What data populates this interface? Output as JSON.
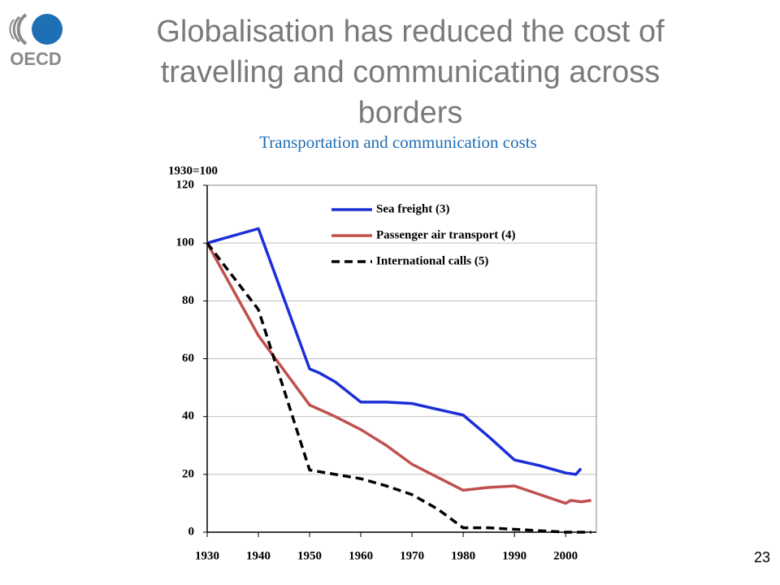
{
  "logo_text": "OECD",
  "page_number": "23",
  "chart_data": {
    "type": "line",
    "title": "Globalisation has reduced the cost of travelling and communicating across borders",
    "subtitle": "Transportation and communication costs",
    "y_label": "1930=100",
    "xlim": [
      1930,
      2006
    ],
    "xticks": [
      1930,
      1940,
      1950,
      1960,
      1970,
      1980,
      1990,
      2000
    ],
    "ylim": [
      0,
      120
    ],
    "yticks": [
      0,
      20,
      40,
      60,
      80,
      100,
      120
    ],
    "grid": true,
    "legend": "upper right",
    "series": [
      {
        "name": "Sea freight (3)",
        "color": "#1a2fd6",
        "linestyle": "solid",
        "x": [
          1930,
          1932,
          1940,
          1950,
          1952,
          1955,
          1960,
          1965,
          1970,
          1975,
          1980,
          1985,
          1990,
          1995,
          2000,
          2002,
          2003
        ],
        "values": [
          100,
          101,
          105,
          56.5,
          55,
          52,
          45,
          45,
          44.5,
          42.5,
          40.5,
          33,
          25,
          23,
          20.5,
          20,
          22
        ]
      },
      {
        "name": "Passenger air transport (4)",
        "color": "#c0504d",
        "linestyle": "solid",
        "x": [
          1930,
          1940,
          1950,
          1955,
          1960,
          1965,
          1970,
          1975,
          1980,
          1985,
          1990,
          1995,
          2000,
          2001,
          2003,
          2005
        ],
        "values": [
          100,
          68,
          44,
          40,
          35.5,
          30,
          23.5,
          19,
          14.5,
          15.5,
          16,
          13,
          10,
          11,
          10.5,
          11
        ]
      },
      {
        "name": "International calls (5)",
        "color": "#000000",
        "linestyle": "dashed",
        "x": [
          1930,
          1940,
          1950,
          1955,
          1960,
          1965,
          1970,
          1975,
          1980,
          1985,
          1990,
          1995,
          2000,
          2005
        ],
        "values": [
          100,
          77,
          21.5,
          20,
          18.5,
          16,
          13,
          8,
          1.5,
          1.5,
          1,
          0.5,
          0,
          0
        ]
      }
    ]
  }
}
